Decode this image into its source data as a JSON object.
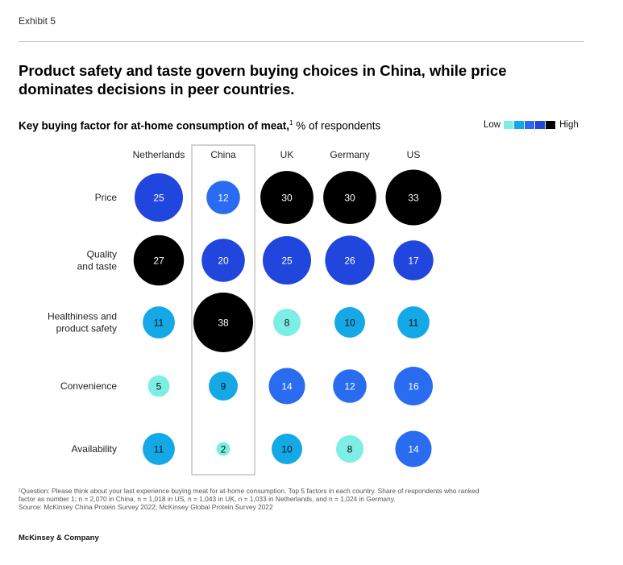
{
  "header": {
    "exhibit": "Exhibit 5",
    "headline": "Product safety and taste govern buying choices in China, while price dominates decisions in peer countries."
  },
  "legend": {
    "low": "Low",
    "high": "High",
    "colors": [
      "#7deee3",
      "#14a8e6",
      "#2a6cf0",
      "#2146dd",
      "#000000"
    ]
  },
  "chart_data": {
    "type": "bubble-matrix",
    "title": "Key buying factor for at-home consumption of meat,",
    "title_sup": "1",
    "unit_label": " % of respondents",
    "categories": [
      "Netherlands",
      "China",
      "UK",
      "Germany",
      "US"
    ],
    "highlight": "China",
    "series": [
      {
        "name": "Price",
        "lines": [
          "Price"
        ],
        "values": [
          25,
          12,
          30,
          30,
          33
        ]
      },
      {
        "name": "Quality and taste",
        "lines": [
          "Quality",
          "and taste"
        ],
        "values": [
          27,
          20,
          25,
          26,
          17
        ]
      },
      {
        "name": "Healthiness and product safety",
        "lines": [
          "Healthiness and",
          "product safety"
        ],
        "values": [
          11,
          38,
          8,
          10,
          11
        ]
      },
      {
        "name": "Convenience",
        "lines": [
          "Convenience"
        ],
        "values": [
          5,
          9,
          14,
          12,
          16
        ]
      },
      {
        "name": "Availability",
        "lines": [
          "Availability"
        ],
        "values": [
          11,
          2,
          10,
          8,
          14
        ]
      }
    ]
  },
  "footnote": {
    "line1": "¹Question: Please think about your last experience buying meat for at-home consumption. Top 5 factors in each country. Share of respondents who ranked",
    "line2": "factor as number 1; n = 2,070 in China, n = 1,018 in US, n = 1,043 in UK, n = 1,033 in Netherlands, and n = 1,024 in Germany.",
    "line3": "Source: McKinsey China Protein Survey 2022; McKinsey Global Protein Survey 2022"
  },
  "brand": "McKinsey & Company"
}
